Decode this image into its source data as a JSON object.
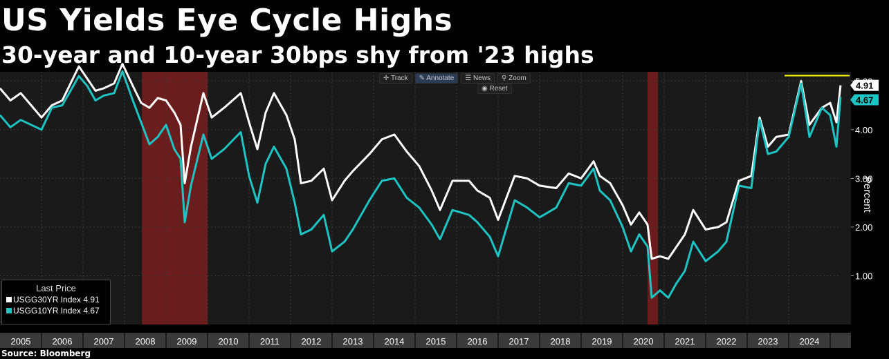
{
  "header": {
    "title": "US Yields Eye Cycle Highs",
    "subtitle": "30-year and 10-year 30bps shy from '23 highs"
  },
  "footer": {
    "source": "Source: Bloomberg"
  },
  "toolbar": {
    "track": "Track",
    "annotate": "Annotate",
    "news": "News",
    "zoom": "Zoom",
    "reset": "Reset"
  },
  "legend": {
    "title": "Last Price",
    "items": [
      "USGG30YR Index 4.91",
      "USGG10YR Index 4.67"
    ]
  },
  "colors": {
    "background": "#000000",
    "plot_background": "#1a1a1a",
    "series_30yr": "#ffffff",
    "series_10yr": "#1ec3c3",
    "recession_shade": "#7a1f1f",
    "highlight_line": "#ffff00",
    "axis_bar": "#3a3a3a"
  },
  "chart_data": {
    "type": "line",
    "ylabel": "Percent",
    "ylim": [
      0,
      5.5
    ],
    "yticks": [
      1,
      2,
      3,
      4,
      5
    ],
    "ytick_labels": [
      "1.00",
      "2.00",
      "3.00",
      "4.00",
      "5.00"
    ],
    "xlim": [
      2004.5,
      2024.75
    ],
    "years": [
      "2005",
      "2006",
      "2007",
      "2008",
      "2009",
      "2010",
      "2011",
      "2012",
      "2013",
      "2014",
      "2015",
      "2016",
      "2017",
      "2018",
      "2019",
      "2020",
      "2021",
      "2022",
      "2023",
      "2024"
    ],
    "grid": true,
    "recessions": [
      [
        2007.92,
        2009.5
      ],
      [
        2020.1,
        2020.35
      ]
    ],
    "highlight_level": {
      "value": 5.11,
      "from": 2023.4,
      "to": 2024.75
    },
    "last_values": {
      "30yr": "4.91",
      "10yr": "4.67"
    },
    "series": [
      {
        "name": "USGG30YR Index",
        "color": "#ffffff",
        "points": [
          [
            2004.5,
            4.85
          ],
          [
            2004.75,
            4.6
          ],
          [
            2005,
            4.75
          ],
          [
            2005.25,
            4.5
          ],
          [
            2005.5,
            4.25
          ],
          [
            2005.75,
            4.5
          ],
          [
            2006,
            4.6
          ],
          [
            2006.4,
            5.3
          ],
          [
            2006.6,
            5.05
          ],
          [
            2006.8,
            4.8
          ],
          [
            2007,
            4.85
          ],
          [
            2007.25,
            4.95
          ],
          [
            2007.45,
            5.35
          ],
          [
            2007.7,
            4.9
          ],
          [
            2007.9,
            4.55
          ],
          [
            2008.1,
            4.45
          ],
          [
            2008.3,
            4.65
          ],
          [
            2008.5,
            4.6
          ],
          [
            2008.7,
            4.35
          ],
          [
            2008.85,
            4.1
          ],
          [
            2008.95,
            2.9
          ],
          [
            2009.1,
            3.65
          ],
          [
            2009.4,
            4.75
          ],
          [
            2009.6,
            4.25
          ],
          [
            2009.9,
            4.45
          ],
          [
            2010.3,
            4.75
          ],
          [
            2010.5,
            4.15
          ],
          [
            2010.7,
            3.6
          ],
          [
            2010.9,
            4.35
          ],
          [
            2011.1,
            4.75
          ],
          [
            2011.4,
            4.3
          ],
          [
            2011.6,
            3.8
          ],
          [
            2011.75,
            2.9
          ],
          [
            2012,
            2.95
          ],
          [
            2012.3,
            3.2
          ],
          [
            2012.5,
            2.55
          ],
          [
            2012.8,
            2.95
          ],
          [
            2013,
            3.15
          ],
          [
            2013.4,
            3.5
          ],
          [
            2013.7,
            3.8
          ],
          [
            2014,
            3.9
          ],
          [
            2014.3,
            3.55
          ],
          [
            2014.6,
            3.25
          ],
          [
            2014.9,
            2.75
          ],
          [
            2015.1,
            2.35
          ],
          [
            2015.4,
            2.95
          ],
          [
            2015.8,
            2.95
          ],
          [
            2016,
            2.75
          ],
          [
            2016.3,
            2.6
          ],
          [
            2016.5,
            2.15
          ],
          [
            2016.9,
            3.05
          ],
          [
            2017.2,
            3.0
          ],
          [
            2017.5,
            2.85
          ],
          [
            2017.9,
            2.8
          ],
          [
            2018.2,
            3.1
          ],
          [
            2018.5,
            3.0
          ],
          [
            2018.8,
            3.35
          ],
          [
            2018.95,
            3.05
          ],
          [
            2019.2,
            2.9
          ],
          [
            2019.5,
            2.45
          ],
          [
            2019.7,
            2.05
          ],
          [
            2019.9,
            2.3
          ],
          [
            2020.1,
            2.05
          ],
          [
            2020.2,
            1.35
          ],
          [
            2020.4,
            1.4
          ],
          [
            2020.6,
            1.35
          ],
          [
            2020.8,
            1.6
          ],
          [
            2021.0,
            1.85
          ],
          [
            2021.2,
            2.35
          ],
          [
            2021.5,
            1.95
          ],
          [
            2021.8,
            2.0
          ],
          [
            2022.0,
            2.1
          ],
          [
            2022.3,
            2.95
          ],
          [
            2022.6,
            3.05
          ],
          [
            2022.8,
            4.25
          ],
          [
            2023.0,
            3.65
          ],
          [
            2023.2,
            3.85
          ],
          [
            2023.5,
            3.9
          ],
          [
            2023.8,
            5.0
          ],
          [
            2024.0,
            4.1
          ],
          [
            2024.3,
            4.45
          ],
          [
            2024.5,
            4.55
          ],
          [
            2024.65,
            4.15
          ],
          [
            2024.75,
            4.91
          ]
        ]
      },
      {
        "name": "USGG10YR Index",
        "color": "#1ec3c3",
        "points": [
          [
            2004.5,
            4.3
          ],
          [
            2004.75,
            4.05
          ],
          [
            2005,
            4.2
          ],
          [
            2005.25,
            4.1
          ],
          [
            2005.5,
            4.0
          ],
          [
            2005.75,
            4.45
          ],
          [
            2006,
            4.5
          ],
          [
            2006.4,
            5.1
          ],
          [
            2006.6,
            4.9
          ],
          [
            2006.8,
            4.6
          ],
          [
            2007,
            4.7
          ],
          [
            2007.25,
            4.75
          ],
          [
            2007.45,
            5.2
          ],
          [
            2007.7,
            4.6
          ],
          [
            2007.9,
            4.15
          ],
          [
            2008.1,
            3.7
          ],
          [
            2008.3,
            3.85
          ],
          [
            2008.5,
            4.1
          ],
          [
            2008.7,
            3.6
          ],
          [
            2008.85,
            3.4
          ],
          [
            2008.95,
            2.1
          ],
          [
            2009.1,
            2.85
          ],
          [
            2009.4,
            3.9
          ],
          [
            2009.6,
            3.4
          ],
          [
            2009.9,
            3.6
          ],
          [
            2010.3,
            3.95
          ],
          [
            2010.5,
            3.05
          ],
          [
            2010.7,
            2.5
          ],
          [
            2010.9,
            3.3
          ],
          [
            2011.1,
            3.65
          ],
          [
            2011.4,
            3.2
          ],
          [
            2011.6,
            2.5
          ],
          [
            2011.75,
            1.85
          ],
          [
            2012,
            1.95
          ],
          [
            2012.3,
            2.25
          ],
          [
            2012.5,
            1.5
          ],
          [
            2012.8,
            1.7
          ],
          [
            2013,
            1.95
          ],
          [
            2013.4,
            2.55
          ],
          [
            2013.7,
            2.95
          ],
          [
            2014,
            3.0
          ],
          [
            2014.3,
            2.6
          ],
          [
            2014.6,
            2.4
          ],
          [
            2014.9,
            2.05
          ],
          [
            2015.1,
            1.75
          ],
          [
            2015.4,
            2.35
          ],
          [
            2015.8,
            2.25
          ],
          [
            2016,
            2.1
          ],
          [
            2016.3,
            1.8
          ],
          [
            2016.5,
            1.4
          ],
          [
            2016.9,
            2.55
          ],
          [
            2017.2,
            2.4
          ],
          [
            2017.5,
            2.2
          ],
          [
            2017.9,
            2.4
          ],
          [
            2018.2,
            2.9
          ],
          [
            2018.5,
            2.85
          ],
          [
            2018.8,
            3.2
          ],
          [
            2018.95,
            2.75
          ],
          [
            2019.2,
            2.55
          ],
          [
            2019.5,
            2.0
          ],
          [
            2019.7,
            1.5
          ],
          [
            2019.9,
            1.85
          ],
          [
            2020.1,
            1.6
          ],
          [
            2020.2,
            0.55
          ],
          [
            2020.4,
            0.7
          ],
          [
            2020.6,
            0.55
          ],
          [
            2020.8,
            0.85
          ],
          [
            2021.0,
            1.1
          ],
          [
            2021.2,
            1.7
          ],
          [
            2021.5,
            1.3
          ],
          [
            2021.8,
            1.5
          ],
          [
            2022.0,
            1.7
          ],
          [
            2022.3,
            2.85
          ],
          [
            2022.6,
            2.8
          ],
          [
            2022.8,
            4.2
          ],
          [
            2023.0,
            3.5
          ],
          [
            2023.2,
            3.55
          ],
          [
            2023.5,
            3.85
          ],
          [
            2023.8,
            4.95
          ],
          [
            2024.0,
            3.85
          ],
          [
            2024.3,
            4.45
          ],
          [
            2024.5,
            4.3
          ],
          [
            2024.65,
            3.65
          ],
          [
            2024.75,
            4.67
          ]
        ]
      }
    ]
  }
}
